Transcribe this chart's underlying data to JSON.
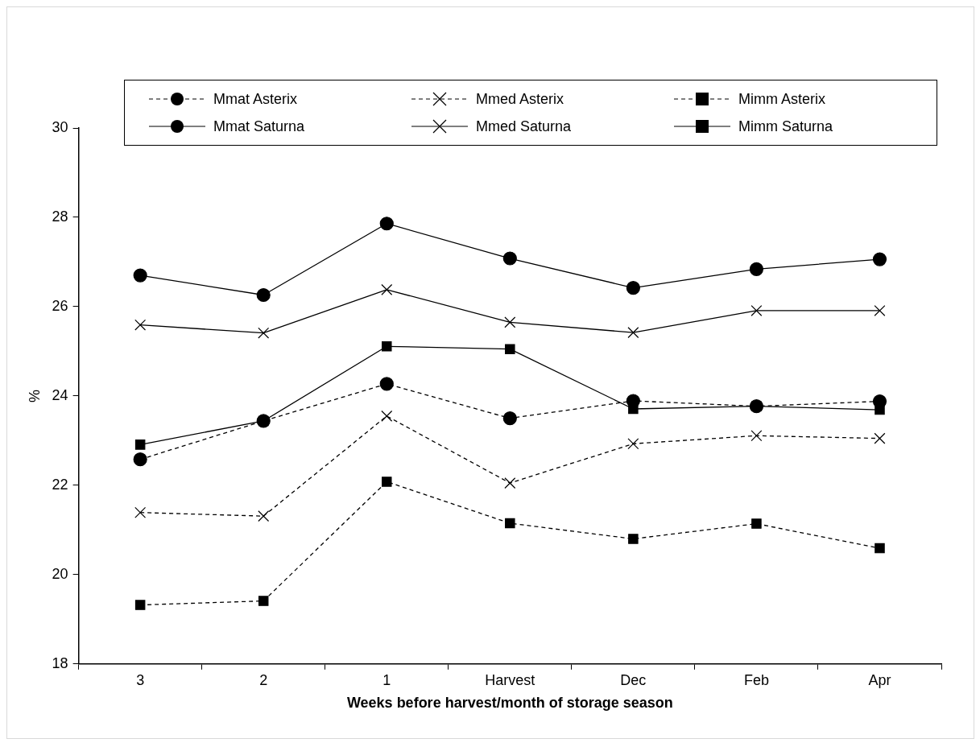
{
  "chart_data": {
    "type": "line",
    "xlabel": "Weeks before harvest/month of storage season",
    "ylabel": "%",
    "categories": [
      "3",
      "2",
      "1",
      "Harvest",
      "Dec",
      "Feb",
      "Apr"
    ],
    "ylim": [
      18,
      30
    ],
    "yticks": [
      18,
      20,
      22,
      24,
      26,
      28,
      30
    ],
    "grid": false,
    "legend": "top",
    "series": [
      {
        "name": "Mmat Asterix",
        "color": "#000000",
        "marker": "circle",
        "line_style": "dashed",
        "values": [
          22.58,
          23.44,
          24.27,
          23.5,
          23.89,
          23.77,
          23.88
        ]
      },
      {
        "name": "Mmed Asterix",
        "color": "#000000",
        "marker": "cross",
        "line_style": "dashed",
        "values": [
          21.39,
          21.31,
          23.55,
          22.05,
          22.93,
          23.11,
          23.05
        ]
      },
      {
        "name": "Mimm Asterix",
        "color": "#000000",
        "marker": "square",
        "line_style": "dashed",
        "values": [
          19.32,
          19.41,
          22.08,
          21.15,
          20.8,
          21.14,
          20.59
        ]
      },
      {
        "name": "Mmat Saturna",
        "color": "#000000",
        "marker": "circle",
        "line_style": "solid",
        "values": [
          26.7,
          26.26,
          27.86,
          27.08,
          26.42,
          26.84,
          27.06
        ]
      },
      {
        "name": "Mmed Saturna",
        "color": "#000000",
        "marker": "cross",
        "line_style": "solid",
        "values": [
          25.59,
          25.41,
          26.38,
          25.65,
          25.42,
          25.91,
          25.91
        ]
      },
      {
        "name": "Mimm Saturna",
        "color": "#000000",
        "marker": "square",
        "line_style": "solid",
        "values": [
          22.91,
          23.44,
          25.11,
          25.05,
          23.71,
          23.77,
          23.69
        ]
      }
    ]
  }
}
